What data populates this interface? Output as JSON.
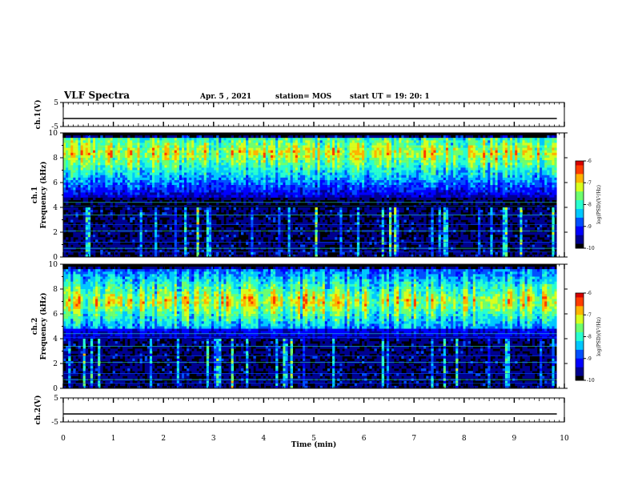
{
  "header": {
    "title": "VLF Spectra",
    "date": "Apr. 5 , 2021",
    "station": "station= MOS",
    "start": "start UT =  19: 20: 1"
  },
  "colors": {
    "colormap": [
      "#000000",
      "#00008f",
      "#0000ff",
      "#0050ff",
      "#00c8ff",
      "#28ffd0",
      "#6eff6e",
      "#d7ff1e",
      "#ffb400",
      "#ff3c00",
      "#d70000"
    ],
    "trace": "#000000"
  },
  "panels": {
    "ch1_wave": {
      "ylabel": "ch.1(V)",
      "yticks": [
        "5",
        "-5"
      ]
    },
    "ch1_spec": {
      "ylabel": "ch.1\nFrequency (kHz)",
      "yticks": [
        "0",
        "2",
        "4",
        "6",
        "8",
        "10"
      ]
    },
    "ch2_spec": {
      "ylabel": "ch.2\nFrequency (kHz)",
      "yticks": [
        "0",
        "2",
        "4",
        "6",
        "8",
        "10"
      ]
    },
    "ch2_wave": {
      "ylabel": "ch.2(V)",
      "yticks": [
        "5",
        "-5"
      ]
    }
  },
  "colorbar": {
    "label": "log(PSD)(V²/Hz)",
    "ticks": [
      "-6",
      "-7",
      "-8",
      "-9",
      "-10"
    ]
  },
  "chart_data": [
    {
      "type": "line",
      "panel": "ch.1(V)",
      "x": [
        0,
        9.85
      ],
      "y": [
        0,
        0
      ],
      "ylim": [
        -5,
        5
      ],
      "xlim": [
        0,
        10
      ]
    },
    {
      "type": "heatmap",
      "panel": "ch.1 Frequency (kHz)",
      "xlim": [
        0,
        10
      ],
      "ylim": [
        0,
        10
      ],
      "data_end_min": 9.85,
      "zlim": [
        -10,
        -6
      ],
      "band_kHz": [
        4,
        9.5
      ],
      "peak_kHz": 8.4,
      "zlabel": "log(PSD)(V²/Hz)"
    },
    {
      "type": "heatmap",
      "panel": "ch.2 Frequency (kHz)",
      "xlim": [
        0,
        10
      ],
      "ylim": [
        0,
        10
      ],
      "data_end_min": 9.85,
      "zlim": [
        -10,
        -6
      ],
      "band_kHz": [
        4,
        9.5
      ],
      "peak_kHz": 7.0,
      "zlabel": "log(PSD)(V²/Hz)"
    },
    {
      "type": "line",
      "panel": "ch.2(V)",
      "x": [
        0,
        9.85
      ],
      "y": [
        0,
        0
      ],
      "ylim": [
        -5,
        5
      ],
      "xlim": [
        0,
        10
      ]
    }
  ],
  "xaxis": {
    "label": "Time (min)",
    "ticks": [
      "0",
      "1",
      "2",
      "3",
      "4",
      "5",
      "6",
      "7",
      "8",
      "9",
      "10"
    ],
    "range": [
      0,
      10
    ]
  }
}
